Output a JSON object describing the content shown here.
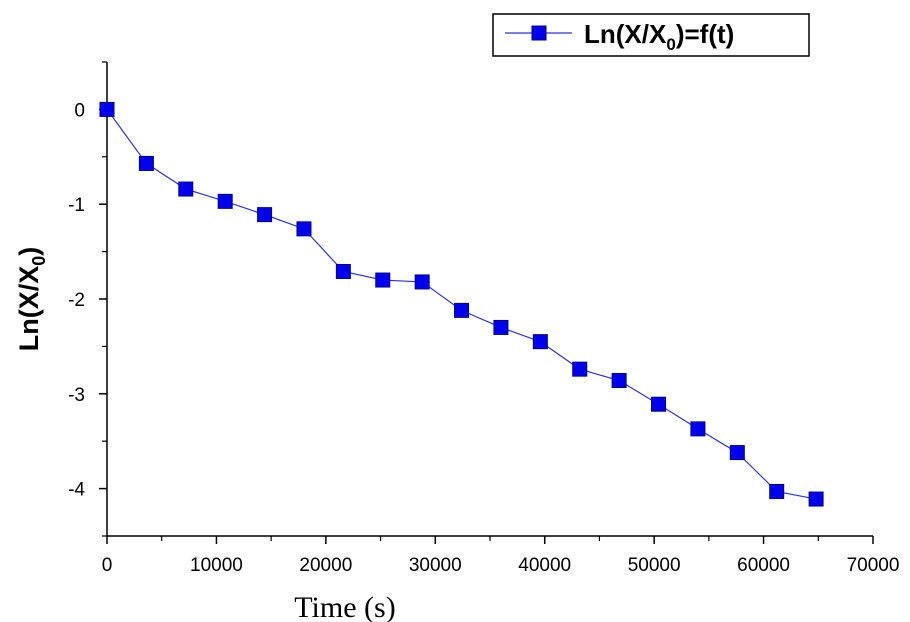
{
  "chart_data": {
    "type": "line",
    "title": "",
    "xlabel": "Time (s)",
    "ylabel": {
      "main": "Ln(X/X",
      "sub": "0",
      "close": ")"
    },
    "xlim": [
      0,
      70000
    ],
    "ylim": [
      -4.5,
      0.5
    ],
    "xticks": [
      0,
      10000,
      20000,
      30000,
      40000,
      50000,
      60000,
      70000
    ],
    "yticks": [
      0,
      -1,
      -2,
      -3,
      -4
    ],
    "legend_position": "top-right",
    "grid": false,
    "series": [
      {
        "name": {
          "main": "Ln(X/X",
          "sub": "0",
          "tail": ")=f(t)"
        },
        "color": "#0000ee",
        "line_color": "#3333cc",
        "marker": "square",
        "x": [
          0,
          3600,
          7200,
          10800,
          14400,
          18000,
          21600,
          25200,
          28800,
          32400,
          36000,
          39600,
          43200,
          46800,
          50400,
          54000,
          57600,
          61200,
          64800
        ],
        "y": [
          0,
          -0.57,
          -0.84,
          -0.97,
          -1.11,
          -1.26,
          -1.71,
          -1.8,
          -1.82,
          -2.12,
          -2.3,
          -2.45,
          -2.74,
          -2.86,
          -3.11,
          -3.37,
          -3.62,
          -4.03,
          -4.11
        ]
      }
    ]
  }
}
